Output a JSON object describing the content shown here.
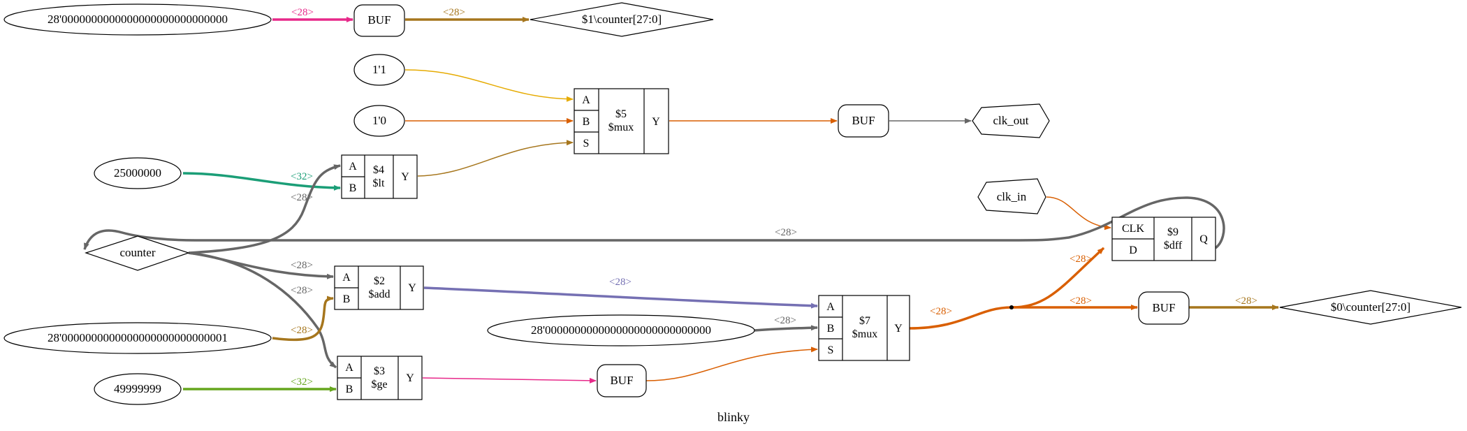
{
  "title": "blinky",
  "colors": {
    "pink": "#e7298a",
    "brown": "#a6761d",
    "gold": "#e6ab02",
    "orange": "#d95f02",
    "teal": "#1b9e77",
    "gray": "#666666",
    "purple": "#7570b3",
    "green": "#66a61e"
  },
  "nodes": {
    "const_counter_init": "28'0000000000000000000000000000",
    "buf_top": "BUF",
    "out_counter1": "$1\\counter[27:0]",
    "const_1_1": "1'1",
    "const_1_0": "1'0",
    "const_25000000": "25000000",
    "counter": "counter",
    "const_one": "28'0000000000000000000000000001",
    "const_49999999": "49999999",
    "const_zero": "28'0000000000000000000000000000",
    "buf_clk": "BUF",
    "clk_out": "clk_out",
    "clk_in": "clk_in",
    "buf_ge": "BUF",
    "buf_out": "BUF",
    "out_counter0": "$0\\counter[27:0]"
  },
  "cells": {
    "mux5": {
      "id": "$5",
      "type": "$mux",
      "in": [
        "A",
        "B",
        "S"
      ],
      "out": "Y"
    },
    "lt4": {
      "id": "$4",
      "type": "$lt",
      "in": [
        "A",
        "B"
      ],
      "out": "Y"
    },
    "add2": {
      "id": "$2",
      "type": "$add",
      "in": [
        "A",
        "B"
      ],
      "out": "Y"
    },
    "ge3": {
      "id": "$3",
      "type": "$ge",
      "in": [
        "A",
        "B"
      ],
      "out": "Y"
    },
    "mux7": {
      "id": "$7",
      "type": "$mux",
      "in": [
        "A",
        "B",
        "S"
      ],
      "out": "Y"
    },
    "dff9": {
      "id": "$9",
      "type": "$dff",
      "in": [
        "CLK",
        "D"
      ],
      "out": "Q"
    }
  },
  "edge_labels": {
    "init_to_buf": "<28>",
    "buf_to_counter1": "<28>",
    "c25m_to_lt": "<32>",
    "counter_to_lt": "<28>",
    "counter_to_add": "<28>",
    "counter_to_ge": "<28>",
    "one_to_add": "<28>",
    "c49m_to_ge": "<32>",
    "add_to_mux7": "<28>",
    "zero_to_mux7": "<28>",
    "mux7_out": "<28>",
    "to_dff": "<28>",
    "to_buf_out": "<28>",
    "buf_to_counter0": "<28>",
    "dff_feedback": "<28>"
  }
}
